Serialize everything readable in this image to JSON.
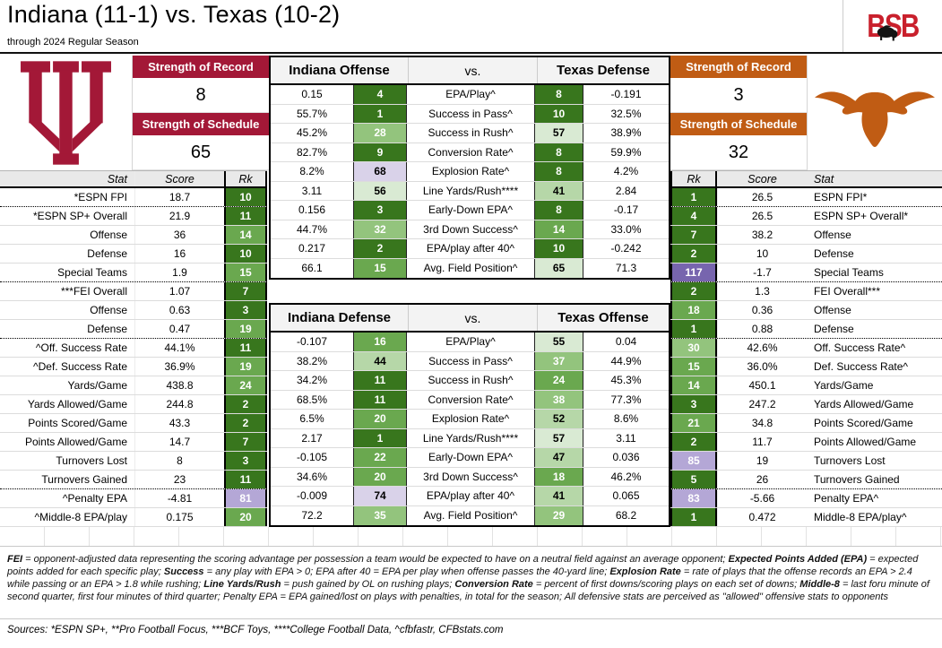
{
  "header": {
    "title": "Indiana (11-1) vs. Texas (10-2)",
    "subtitle": "through 2024 Regular Season",
    "brand": "BSB"
  },
  "indiana": {
    "name": "Indiana",
    "record": "11-1",
    "color": "#A31837",
    "sor_label": "Strength of Record",
    "sor": "8",
    "sos_label": "Strength of Schedule",
    "sos": "65"
  },
  "texas": {
    "name": "Texas",
    "record": "10-2",
    "color": "#C05C14",
    "sor_label": "Strength of Record",
    "sor": "3",
    "sos_label": "Strength of Schedule",
    "sos": "32"
  },
  "chart_data": {
    "type": "table",
    "title": "Indiana (11-1) vs. Texas (10-2)",
    "subtitle": "through 2024 Regular Season",
    "rank_color_scale": [
      {
        "max": 13,
        "bg": "#38761D",
        "fg": "#FFFFFF"
      },
      {
        "max": 27,
        "bg": "#6AA84F",
        "fg": "#FFFFFF"
      },
      {
        "max": 40,
        "bg": "#93C47D",
        "fg": "#FFFFFF"
      },
      {
        "max": 52,
        "bg": "#B6D7A8",
        "fg": "#000000"
      },
      {
        "max": 67,
        "bg": "#D9EAD3",
        "fg": "#000000"
      },
      {
        "max": 80,
        "bg": "#D9D2E9",
        "fg": "#000000"
      },
      {
        "max": 99,
        "bg": "#B4A7D6",
        "fg": "#FFFFFF"
      },
      {
        "max": 200,
        "bg": "#7765AE",
        "fg": "#FFFFFF"
      }
    ],
    "side_table": {
      "left_headers": [
        "Stat",
        "Score",
        "Rk"
      ],
      "right_headers": [
        "Rk",
        "Score",
        "Stat"
      ],
      "rows": [
        {
          "ls": "*ESPN FPI",
          "is": "18.7",
          "ir": 10,
          "tr": 1,
          "ts": "26.5",
          "rs": "ESPN FPI*",
          "d": true
        },
        {
          "ls": "*ESPN SP+ Overall",
          "is": "21.9",
          "ir": 11,
          "tr": 4,
          "ts": "26.5",
          "rs": "ESPN SP+ Overall*"
        },
        {
          "ls": "Offense",
          "is": "36",
          "ir": 14,
          "tr": 7,
          "ts": "38.2",
          "rs": "Offense"
        },
        {
          "ls": "Defense",
          "is": "16",
          "ir": 10,
          "tr": 2,
          "ts": "10",
          "rs": "Defense"
        },
        {
          "ls": "Special Teams",
          "is": "1.9",
          "ir": 15,
          "tr": 117,
          "ts": "-1.7",
          "rs": "Special Teams",
          "d": true
        },
        {
          "ls": "***FEI Overall",
          "is": "1.07",
          "ir": 7,
          "tr": 2,
          "ts": "1.3",
          "rs": "FEI Overall***"
        },
        {
          "ls": "Offense",
          "is": "0.63",
          "ir": 3,
          "tr": 18,
          "ts": "0.36",
          "rs": "Offense"
        },
        {
          "ls": "Defense",
          "is": "0.47",
          "ir": 19,
          "tr": 1,
          "ts": "0.88",
          "rs": "Defense",
          "d": true
        },
        {
          "ls": "^Off. Success Rate",
          "is": "44.1%",
          "ir": 11,
          "tr": 30,
          "ts": "42.6%",
          "rs": "Off. Success Rate^"
        },
        {
          "ls": "^Def. Success Rate",
          "is": "36.9%",
          "ir": 19,
          "tr": 15,
          "ts": "36.0%",
          "rs": "Def. Success Rate^"
        },
        {
          "ls": "Yards/Game",
          "is": "438.8",
          "ir": 24,
          "tr": 14,
          "ts": "450.1",
          "rs": "Yards/Game"
        },
        {
          "ls": "Yards Allowed/Game",
          "is": "244.8",
          "ir": 2,
          "tr": 3,
          "ts": "247.2",
          "rs": "Yards Allowed/Game"
        },
        {
          "ls": "Points Scored/Game",
          "is": "43.3",
          "ir": 2,
          "tr": 21,
          "ts": "34.8",
          "rs": "Points Scored/Game"
        },
        {
          "ls": "Points Allowed/Game",
          "is": "14.7",
          "ir": 7,
          "tr": 2,
          "ts": "11.7",
          "rs": "Points Allowed/Game"
        },
        {
          "ls": "Turnovers Lost",
          "is": "8",
          "ir": 3,
          "tr": 85,
          "ts": "19",
          "rs": "Turnovers Lost"
        },
        {
          "ls": "Turnovers Gained",
          "is": "23",
          "ir": 11,
          "tr": 5,
          "ts": "26",
          "rs": "Turnovers Gained",
          "d": true
        },
        {
          "ls": "^Penalty EPA",
          "is": "-4.81",
          "ir": 81,
          "tr": 83,
          "ts": "-5.66",
          "rs": "Penalty EPA^"
        },
        {
          "ls": "^Middle-8 EPA/play",
          "is": "0.175",
          "ir": 20,
          "tr": 1,
          "ts": "0.472",
          "rs": "Middle-8 EPA/play^"
        }
      ]
    },
    "matchups": [
      {
        "left_header": "Indiana Offense",
        "vs_label": "vs.",
        "right_header": "Texas Defense",
        "rows": [
          {
            "lv": "0.15",
            "lr": 4,
            "stat": "EPA/Play^",
            "rr": 8,
            "rv": "-0.191"
          },
          {
            "lv": "55.7%",
            "lr": 1,
            "stat": "Success in Pass^",
            "rr": 10,
            "rv": "32.5%"
          },
          {
            "lv": "45.2%",
            "lr": 28,
            "stat": "Success in Rush^",
            "rr": 57,
            "rv": "38.9%"
          },
          {
            "lv": "82.7%",
            "lr": 9,
            "stat": "Conversion Rate^",
            "rr": 8,
            "rv": "59.9%"
          },
          {
            "lv": "8.2%",
            "lr": 68,
            "stat": "Explosion Rate^",
            "rr": 8,
            "rv": "4.2%"
          },
          {
            "lv": "3.11",
            "lr": 56,
            "stat": "Line Yards/Rush****",
            "rr": 41,
            "rv": "2.84"
          },
          {
            "lv": "0.156",
            "lr": 3,
            "stat": "Early-Down EPA^",
            "rr": 8,
            "rv": "-0.17"
          },
          {
            "lv": "44.7%",
            "lr": 32,
            "stat": "3rd Down Success^",
            "rr": 14,
            "rv": "33.0%"
          },
          {
            "lv": "0.217",
            "lr": 2,
            "stat": "EPA/play after 40^",
            "rr": 10,
            "rv": "-0.242"
          },
          {
            "lv": "66.1",
            "lr": 15,
            "stat": "Avg. Field Position^",
            "rr": 65,
            "rv": "71.3"
          }
        ]
      },
      {
        "left_header": "Indiana Defense",
        "vs_label": "vs.",
        "right_header": "Texas Offense",
        "rows": [
          {
            "lv": "-0.107",
            "lr": 16,
            "stat": "EPA/Play^",
            "rr": 55,
            "rv": "0.04"
          },
          {
            "lv": "38.2%",
            "lr": 44,
            "stat": "Success in Pass^",
            "rr": 37,
            "rv": "44.9%"
          },
          {
            "lv": "34.2%",
            "lr": 11,
            "stat": "Success in Rush^",
            "rr": 24,
            "rv": "45.3%"
          },
          {
            "lv": "68.5%",
            "lr": 11,
            "stat": "Conversion Rate^",
            "rr": 38,
            "rv": "77.3%"
          },
          {
            "lv": "6.5%",
            "lr": 20,
            "stat": "Explosion Rate^",
            "rr": 52,
            "rv": "8.6%"
          },
          {
            "lv": "2.17",
            "lr": 1,
            "stat": "Line Yards/Rush****",
            "rr": 57,
            "rv": "3.11"
          },
          {
            "lv": "-0.105",
            "lr": 22,
            "stat": "Early-Down EPA^",
            "rr": 47,
            "rv": "0.036"
          },
          {
            "lv": "34.6%",
            "lr": 20,
            "stat": "3rd Down Success^",
            "rr": 18,
            "rv": "46.2%"
          },
          {
            "lv": "-0.009",
            "lr": 74,
            "stat": "EPA/play after 40^",
            "rr": 41,
            "rv": "0.065"
          },
          {
            "lv": "72.2",
            "lr": 35,
            "stat": "Avg. Field Position^",
            "rr": 29,
            "rv": "68.2"
          }
        ]
      }
    ]
  },
  "footer": {
    "definitions": [
      {
        "b": true,
        "t": "FEI"
      },
      {
        "b": false,
        "t": " = opponent-adjusted data representing the scoring advantage per possession a team would be expected to have on a neutral field against an average opponent; "
      },
      {
        "b": true,
        "t": "Expected Points Added (EPA)"
      },
      {
        "b": false,
        "t": " = expected points added for each specific play; "
      },
      {
        "b": true,
        "t": "Success"
      },
      {
        "b": false,
        "t": " = any play with EPA > 0; EPA after 40 = EPA per play when offense passes the 40-yard line; "
      },
      {
        "b": true,
        "t": "Explosion Rate"
      },
      {
        "b": false,
        "t": " = rate of plays that the offense records an EPA > 2.4 while passing or an EPA > 1.8 while rushing; "
      },
      {
        "b": true,
        "t": "Line Yards/Rush"
      },
      {
        "b": false,
        "t": " = push gained by OL on rushing plays; "
      },
      {
        "b": true,
        "t": "Conversion Rate"
      },
      {
        "b": false,
        "t": " = percent of first downs/scoring plays on each set of downs; "
      },
      {
        "b": true,
        "t": "Middle-8"
      },
      {
        "b": false,
        "t": " = last foru minute of second quarter, first four minutes of third quarter; Penalty EPA = EPA gained/lost on plays with penalties, in total for the season; All defensive stats are perceived as \"allowed\" offensive stats to opponents"
      }
    ],
    "sources": "Sources:  *ESPN SP+, **Pro Football Focus, ***BCF Toys, ****College Football Data, ^cfbfastr, CFBstats.com"
  }
}
